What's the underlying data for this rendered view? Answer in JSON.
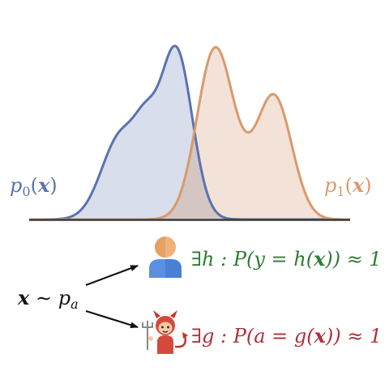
{
  "figure": {
    "density_left": {
      "label_p": "p",
      "label_sub": "0",
      "label_open": "(",
      "label_x": "x",
      "label_close": ")",
      "color": "#5a73b0",
      "fill": "#d6dcea"
    },
    "density_right": {
      "label_p": "p",
      "label_sub": "1",
      "label_open": "(",
      "label_x": "x",
      "label_close": ")",
      "color": "#d99a6c",
      "fill": "#f1ddd1"
    },
    "overlap_fill": "#d4c6c3",
    "axis_color": "#3a3a3a",
    "sample": {
      "x": "x",
      "tilde": " ∼ ",
      "p": "p",
      "sub": "a"
    },
    "task_statement": {
      "text_a": "∃h : P(y = h(",
      "text_x": "x",
      "text_b": ")) ≈ 1",
      "color": "#2f7d32",
      "icon": "person-icon"
    },
    "adversary_statement": {
      "text_a": "∃g : P(a = g(",
      "text_x": "x",
      "text_b": ")) ≈ 1",
      "color": "#b0303a",
      "icon": "devil-icon"
    }
  }
}
